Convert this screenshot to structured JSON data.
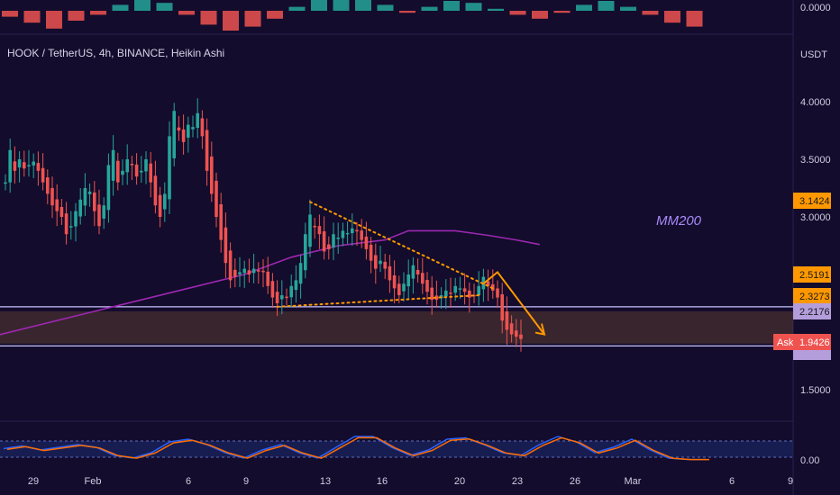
{
  "header": {
    "title": "HOOK / TetherUS, 4h, BINANCE, Heikin Ashi",
    "currency": "USDT"
  },
  "annotation": "MM200",
  "top_panel": {
    "label": "0.0000"
  },
  "bottom_panel": {
    "label": "0.00"
  },
  "price_tags": {
    "p1": "3.1424",
    "p2": "2.5191",
    "p3": "2.3273",
    "p4": "2.2176",
    "ask_label": "Ask",
    "ask_value": "1.9426"
  },
  "colors": {
    "background": "#130c2c",
    "up": "#26a69a",
    "down": "#ef5350",
    "mm200": "#9c27b0",
    "trendline": "#ff9800",
    "zone": "#5a3a32",
    "tag_orange": "#ff9800",
    "tag_lilac": "#b39ddb",
    "tag_red": "#ef5350"
  },
  "chart_data": {
    "type": "candlestick",
    "chart_style": "Heikin Ashi",
    "symbol": "HOOK / TetherUS",
    "timeframe": "4h",
    "exchange": "BINANCE",
    "y_axis": {
      "ticks": [
        "4.0000",
        "3.5000",
        "3.0000",
        "1.5000"
      ],
      "range": [
        1.3,
        4.3
      ],
      "position": "right"
    },
    "x_axis": {
      "ticks": [
        "29",
        "Feb",
        "6",
        "9",
        "13",
        "16",
        "20",
        "23",
        "26",
        "Mar",
        "6",
        "9"
      ]
    },
    "price_path": [
      [
        29,
        3.3
      ],
      [
        30,
        3.58
      ],
      [
        31,
        3.4
      ],
      [
        32,
        3.5
      ],
      [
        33,
        3.42
      ],
      [
        34,
        3.45
      ],
      [
        35,
        3.48
      ],
      [
        36,
        3.4
      ],
      [
        37,
        3.3
      ],
      [
        38,
        3.2
      ],
      [
        39,
        3.1
      ],
      [
        40,
        3.05
      ],
      [
        41,
        3.0
      ],
      [
        42,
        2.85
      ],
      [
        43,
        2.92
      ],
      [
        44,
        3.05
      ],
      [
        45,
        3.15
      ],
      [
        46,
        3.25
      ],
      [
        47,
        3.22
      ],
      [
        48,
        3.05
      ],
      [
        49,
        2.92
      ],
      [
        50,
        3.1
      ],
      [
        51,
        3.45
      ],
      [
        52,
        3.58
      ],
      [
        53,
        3.3
      ],
      [
        54,
        3.4
      ],
      [
        55,
        3.5
      ],
      [
        56,
        3.45
      ],
      [
        57,
        3.35
      ],
      [
        58,
        3.4
      ],
      [
        59,
        3.5
      ],
      [
        60,
        3.3
      ],
      [
        61,
        3.1
      ],
      [
        62,
        3.0
      ],
      [
        63,
        3.2
      ],
      [
        64,
        3.7
      ],
      [
        65,
        3.92
      ],
      [
        66,
        3.75
      ],
      [
        67,
        3.65
      ],
      [
        68,
        3.8
      ],
      [
        69,
        3.78
      ],
      [
        70,
        3.9
      ],
      [
        71,
        3.7
      ],
      [
        72,
        3.4
      ],
      [
        73,
        3.2
      ],
      [
        74,
        3.0
      ],
      [
        75,
        2.8
      ],
      [
        76,
        2.6
      ],
      [
        77,
        2.45
      ],
      [
        78,
        2.48
      ],
      [
        79,
        2.52
      ],
      [
        80,
        2.55
      ],
      [
        81,
        2.5
      ],
      [
        82,
        2.55
      ],
      [
        83,
        2.53
      ],
      [
        84,
        2.52
      ],
      [
        85,
        2.4
      ],
      [
        86,
        2.3
      ],
      [
        87,
        2.25
      ],
      [
        88,
        2.32
      ],
      [
        89,
        2.3
      ],
      [
        90,
        2.4
      ],
      [
        91,
        2.45
      ],
      [
        92,
        2.6
      ],
      [
        93,
        2.85
      ],
      [
        94,
        3.02
      ],
      [
        95,
        2.92
      ],
      [
        96,
        2.85
      ],
      [
        97,
        2.7
      ],
      [
        98,
        2.72
      ],
      [
        99,
        2.85
      ],
      [
        100,
        2.82
      ],
      [
        101,
        2.88
      ],
      [
        102,
        2.86
      ],
      [
        103,
        2.9
      ],
      [
        104,
        2.88
      ],
      [
        105,
        2.8
      ],
      [
        106,
        2.72
      ],
      [
        107,
        2.62
      ],
      [
        108,
        2.55
      ],
      [
        109,
        2.62
      ],
      [
        110,
        2.55
      ],
      [
        111,
        2.45
      ],
      [
        112,
        2.38
      ],
      [
        113,
        2.32
      ],
      [
        114,
        2.42
      ],
      [
        115,
        2.5
      ],
      [
        116,
        2.58
      ],
      [
        117,
        2.5
      ],
      [
        118,
        2.42
      ],
      [
        119,
        2.35
      ],
      [
        120,
        2.28
      ],
      [
        121,
        2.28
      ],
      [
        122,
        2.32
      ],
      [
        123,
        2.36
      ],
      [
        124,
        2.34
      ],
      [
        125,
        2.4
      ],
      [
        126,
        2.38
      ],
      [
        127,
        2.35
      ],
      [
        128,
        2.3
      ],
      [
        129,
        2.32
      ],
      [
        130,
        2.4
      ],
      [
        131,
        2.48
      ],
      [
        132,
        2.4
      ],
      [
        133,
        2.36
      ],
      [
        134,
        2.3
      ],
      [
        135,
        2.1
      ],
      [
        136,
        2.02
      ],
      [
        137,
        1.98
      ],
      [
        138,
        1.96
      ],
      [
        139,
        1.94
      ]
    ],
    "series": [
      {
        "name": "MM200",
        "type": "line",
        "points": [
          [
            -3,
            1.65
          ],
          [
            20,
            1.9
          ],
          [
            50,
            2.2
          ],
          [
            70,
            2.4
          ],
          [
            80,
            2.5
          ],
          [
            90,
            2.65
          ],
          [
            100,
            2.75
          ],
          [
            110,
            2.8
          ],
          [
            115,
            2.88
          ],
          [
            125,
            2.88
          ],
          [
            132,
            2.84
          ],
          [
            138,
            2.8
          ],
          [
            143,
            2.76
          ]
        ]
      },
      {
        "name": "",
        "type": "trendline",
        "style": "dotted",
        "points": [
          [
            94,
            3.13
          ],
          [
            133,
            2.38
          ]
        ]
      },
      {
        "name": "",
        "type": "trendline",
        "style": "dotted",
        "points": [
          [
            87,
            2.22
          ],
          [
            130,
            2.32
          ]
        ]
      },
      {
        "name": "",
        "type": "arrow",
        "points": [
          [
            131,
            2.42
          ],
          [
            134,
            2.52
          ],
          [
            144,
            1.98
          ]
        ]
      }
    ],
    "zone": {
      "top": 2.18,
      "bottom": 1.9
    },
    "horizontal_lines": [
      2.22,
      1.88
    ],
    "oscillator_top": {
      "values": [
        -0.3,
        -0.6,
        -0.9,
        -0.5,
        -0.2,
        0.3,
        0.6,
        0.4,
        -0.2,
        -0.7,
        -1.0,
        -0.8,
        -0.4,
        0.2,
        0.6,
        0.9,
        0.7,
        0.3,
        -0.1,
        0.2,
        0.5,
        0.4,
        0.1,
        -0.2,
        -0.4,
        -0.1,
        0.3,
        0.5,
        0.2,
        -0.2,
        -0.6,
        -0.8
      ]
    },
    "oscillator_bottom": {
      "values": [
        0.45,
        0.55,
        0.4,
        0.5,
        0.6,
        0.5,
        0.2,
        0.1,
        0.3,
        0.7,
        0.8,
        0.6,
        0.3,
        0.1,
        0.4,
        0.6,
        0.3,
        0.1,
        0.5,
        0.9,
        0.9,
        0.5,
        0.2,
        0.4,
        0.8,
        0.85,
        0.6,
        0.3,
        0.2,
        0.6,
        0.9,
        0.7,
        0.3,
        0.5,
        0.8,
        0.4,
        0.1,
        0.05,
        0.05
      ]
    }
  }
}
